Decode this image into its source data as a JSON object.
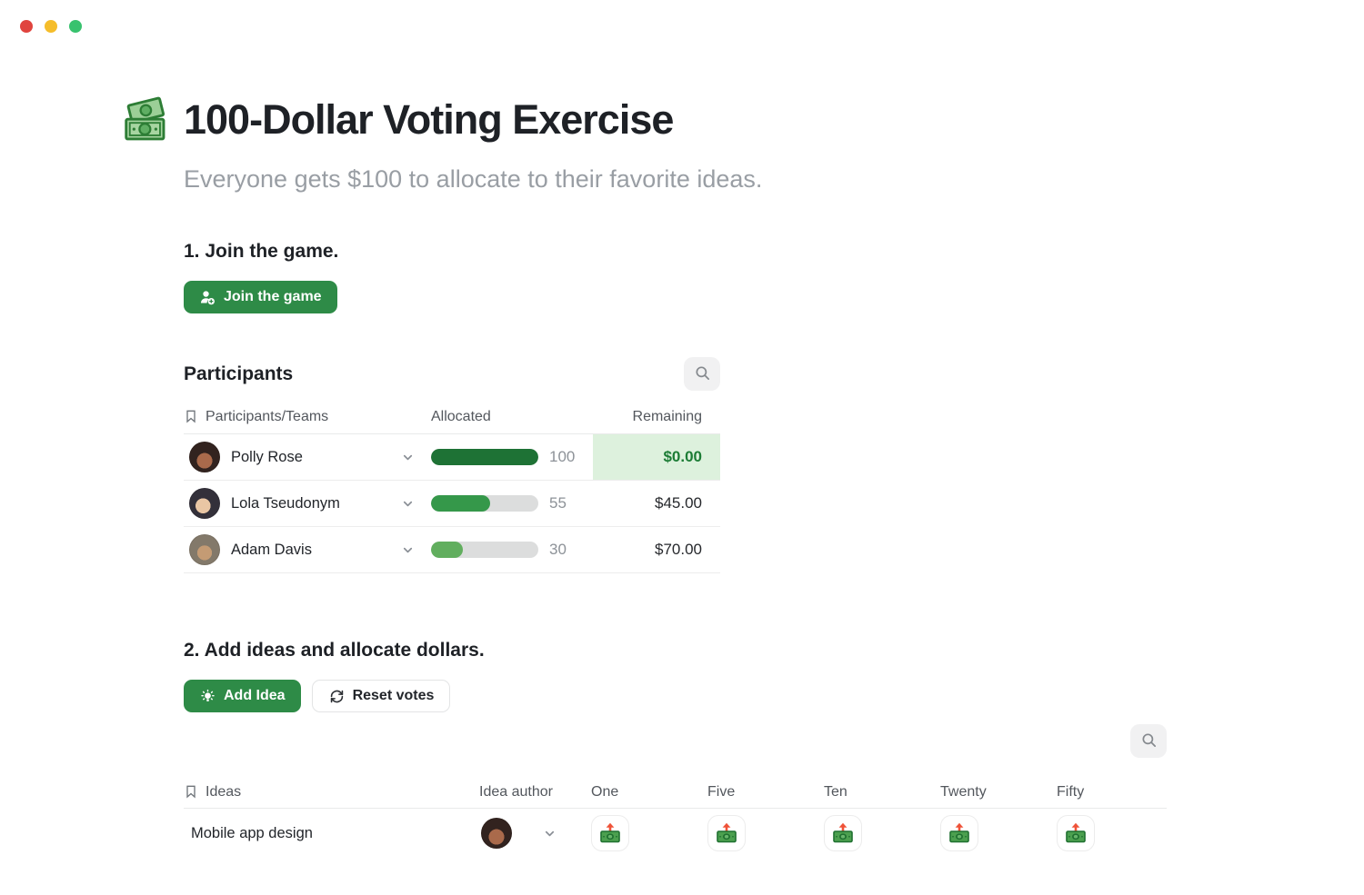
{
  "window": {
    "controls": [
      "close",
      "minimize",
      "zoom"
    ]
  },
  "page": {
    "title": "100-Dollar Voting Exercise",
    "title_icon": "dollar-banknotes",
    "subtitle": "Everyone gets $100 to allocate to their favorite ideas."
  },
  "join_section": {
    "heading": "1. Join the game.",
    "join_button_label": "Join the game"
  },
  "participants": {
    "heading": "Participants",
    "columns": [
      "Participants/Teams",
      "Allocated",
      "Remaining"
    ],
    "allocation_max": 100,
    "rows": [
      {
        "name": "Polly Rose",
        "allocated": 100,
        "remaining": "$0.00",
        "bar_color": "#1e7235",
        "highlighted": true
      },
      {
        "name": "Lola Tseudonym",
        "allocated": 55,
        "remaining": "$45.00",
        "bar_color": "#35984a",
        "highlighted": false
      },
      {
        "name": "Adam Davis",
        "allocated": 30,
        "remaining": "$70.00",
        "bar_color": "#61ae5e",
        "highlighted": false
      }
    ]
  },
  "ideas_section": {
    "heading": "2. Add ideas and allocate dollars.",
    "add_idea_button_label": "Add Idea",
    "reset_votes_button_label": "Reset votes"
  },
  "ideas": {
    "columns": [
      "Ideas",
      "Idea author",
      "One",
      "Five",
      "Ten",
      "Twenty",
      "Fifty"
    ],
    "vote_denominations": [
      "One",
      "Five",
      "Ten",
      "Twenty",
      "Fifty"
    ],
    "rows": [
      {
        "idea": "Mobile app design",
        "author": "Polly Rose"
      }
    ]
  },
  "colors": {
    "accent_green": "#2e8b47",
    "remaining_highlight_bg": "#ddf1dd",
    "remaining_highlight_text": "#1c7c35",
    "traffic_red": "#e0443e",
    "traffic_yellow": "#f5bd2b",
    "traffic_green": "#38c26e"
  }
}
